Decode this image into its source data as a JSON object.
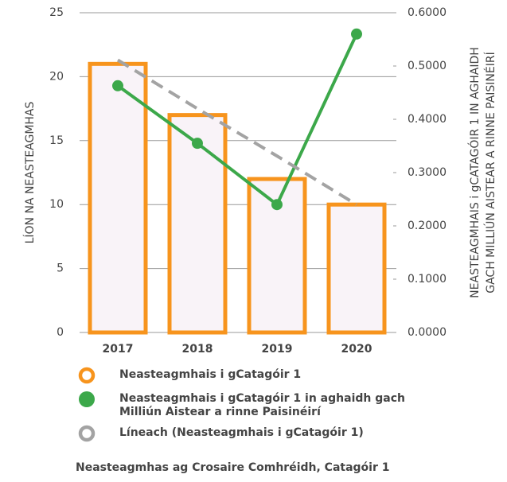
{
  "chart_data": {
    "type": "bar",
    "title": "Neasteagmhas ag Crosaire Comhréidh, Catagóir 1",
    "ylabel": "LÍON NA NEASTEAGMHAS",
    "y2label": [
      "NEASTEAGMHAIS i gCATAGÓIR 1 IN AGHAIDH",
      "GACH MILLIÚN AISTEAR A RINNE PAISINÉIRÍ"
    ],
    "categories": [
      "2017",
      "2018",
      "2019",
      "2020"
    ],
    "ylim": [
      0,
      25
    ],
    "yticks": [
      0,
      5,
      10,
      15,
      20,
      25
    ],
    "y2lim": [
      0,
      0.6
    ],
    "y2ticks": [
      {
        "value": 0,
        "label": "0.0000"
      },
      {
        "value": 0.1,
        "label": "0.1000"
      },
      {
        "value": 0.2,
        "label": "0.2000"
      },
      {
        "value": 0.3,
        "label": "0.3000"
      },
      {
        "value": 0.4,
        "label": "0.4000"
      },
      {
        "value": 0.5,
        "label": "0.5000"
      },
      {
        "value": 0.6,
        "label": "0.6000"
      }
    ],
    "grid": true,
    "series": [
      {
        "name": "Neasteagmhais i gCatagóir 1",
        "type": "bar",
        "color": "#f7941d",
        "fill": "#f9f3f8",
        "values": [
          21,
          17,
          12,
          10
        ]
      },
      {
        "name": "Neasteagmhais i gCatagóir 1 in aghaidh gach Milliún Aistear a rinne Paisinéirí",
        "type": "line",
        "axis": "y2",
        "color": "#3ca84a",
        "values": [
          0.463,
          0.355,
          0.24,
          0.56
        ]
      },
      {
        "name": "Líneach (Neasteagmhais i gCatagóir 1)",
        "type": "line",
        "dashed": true,
        "color": "#a3a3a3",
        "values": [
          21.3,
          17.5,
          13.8,
          10.0
        ]
      }
    ]
  }
}
